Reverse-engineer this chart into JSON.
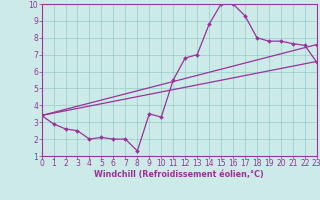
{
  "line1_x": [
    0,
    1,
    2,
    3,
    4,
    5,
    6,
    7,
    8,
    9,
    10,
    11,
    12,
    13,
    14,
    15,
    16,
    17,
    18,
    19,
    20,
    21,
    22,
    23
  ],
  "line1_y": [
    3.4,
    2.9,
    2.6,
    2.5,
    2.0,
    2.1,
    2.0,
    2.0,
    1.3,
    3.5,
    3.3,
    5.5,
    6.8,
    7.0,
    8.8,
    10.0,
    10.0,
    9.3,
    8.0,
    7.8,
    7.8,
    7.65,
    7.55,
    6.55
  ],
  "line2_x": [
    0,
    23
  ],
  "line2_y": [
    3.4,
    7.6
  ],
  "line3_x": [
    0,
    23
  ],
  "line3_y": [
    3.4,
    6.6
  ],
  "color": "#993399",
  "bg_color": "#cceae8",
  "grid_color": "#99cccc",
  "axis_label_bg": "#7700aa",
  "xlabel": "Windchill (Refroidissement éolien,°C)",
  "xlim": [
    0,
    23
  ],
  "ylim": [
    1,
    10
  ],
  "xticks": [
    0,
    1,
    2,
    3,
    4,
    5,
    6,
    7,
    8,
    9,
    10,
    11,
    12,
    13,
    14,
    15,
    16,
    17,
    18,
    19,
    20,
    21,
    22,
    23
  ],
  "yticks": [
    1,
    2,
    3,
    4,
    5,
    6,
    7,
    8,
    9,
    10
  ],
  "marker": "D",
  "markersize": 2.0,
  "linewidth": 0.9,
  "tick_fontsize": 5.5,
  "xlabel_fontsize": 5.8
}
